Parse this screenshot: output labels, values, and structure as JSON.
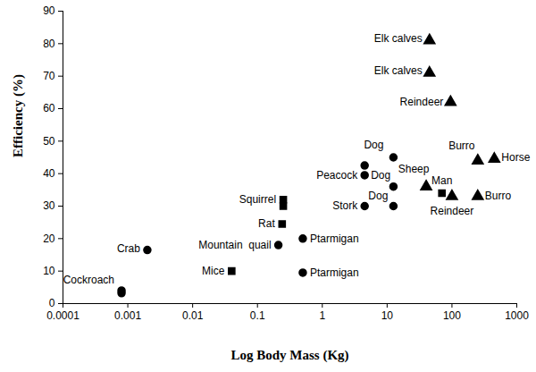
{
  "chart_data": {
    "type": "scatter",
    "x_label": "Log Body Mass (Kg)",
    "y_label": "Efficiency (%)",
    "log": "x",
    "grid": false,
    "xlim": [
      0.0001,
      1000
    ],
    "xticks": [
      0.0001,
      0.001,
      0.01,
      0.1,
      1,
      10,
      100,
      1000
    ],
    "ylim": [
      0,
      90
    ],
    "yticks": [
      0,
      10,
      20,
      30,
      40,
      50,
      60,
      70,
      80,
      90
    ],
    "series": [
      {
        "marker": "circle",
        "color": "#000000",
        "x": [
          0.0008,
          0.0008,
          0.002,
          0.21,
          0.5,
          0.5,
          4.5,
          4.5,
          4.5,
          12.5,
          12.5,
          12.5
        ],
        "values": [
          4,
          3.2,
          16.5,
          18,
          20,
          9.5,
          30,
          39.5,
          42.5,
          45,
          36,
          30
        ],
        "labels": [
          "Cockroach",
          null,
          "Crab",
          "Mountain  quail",
          "Ptarmigan",
          "Ptarmigan",
          "Stork",
          "Peacock",
          "Dog",
          "Dog",
          "Dog",
          null
        ]
      },
      {
        "marker": "square",
        "color": "#000000",
        "x": [
          0.04,
          0.24,
          0.25,
          0.25,
          70
        ],
        "values": [
          10,
          24.5,
          32,
          30,
          34
        ],
        "labels": [
          "Mice",
          "Rat",
          "Squirrel",
          null,
          "Man"
        ]
      },
      {
        "marker": "triangle",
        "color": "#000000",
        "x": [
          45,
          45,
          95,
          250,
          450,
          250,
          40,
          100
        ],
        "values": [
          81,
          71,
          62,
          44,
          44.5,
          33,
          36,
          33
        ],
        "labels": [
          "Elk calves",
          "Elk calves",
          "Reindeer",
          "Burro",
          "Horse",
          "Burro",
          "Sheep",
          "Reindeer"
        ]
      }
    ]
  }
}
